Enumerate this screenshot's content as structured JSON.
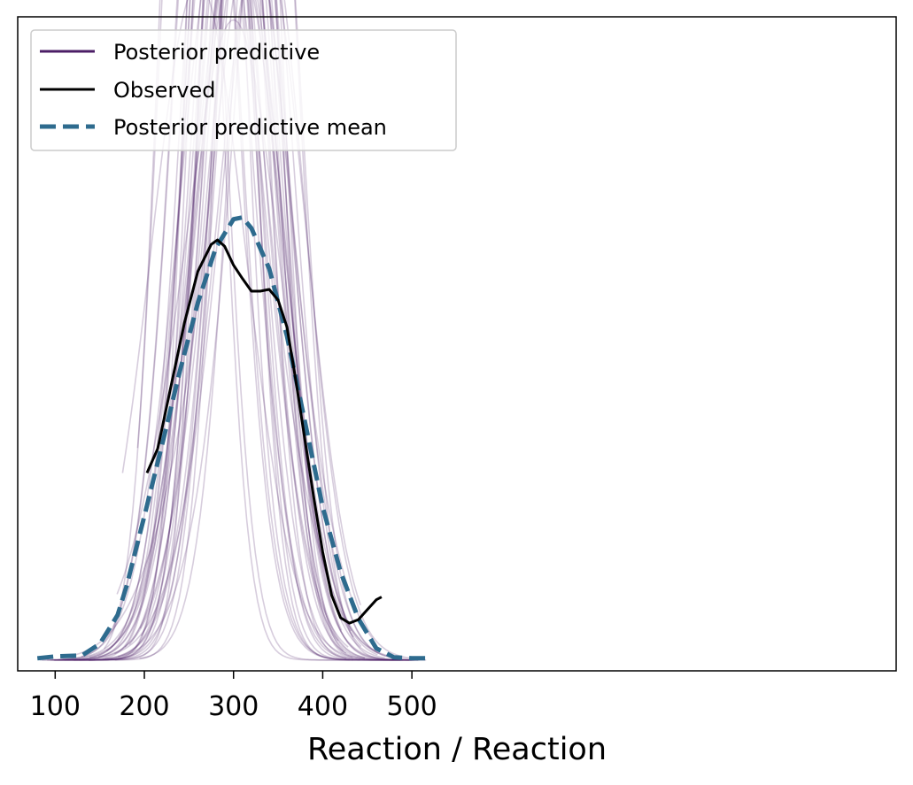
{
  "chart_data": {
    "type": "line",
    "title": "",
    "xlabel": "Reaction / Reaction",
    "ylabel": "",
    "xlim": [
      58,
      1043
    ],
    "ylim": [
      -0.00012,
      0.00715
    ],
    "xticks": [
      100,
      200,
      300,
      400,
      500
    ],
    "show_yticks": false,
    "grid": false,
    "legend": {
      "location": "top-left",
      "entries": [
        {
          "label": "Posterior predictive",
          "style": "solid",
          "color": "#4b1d66"
        },
        {
          "label": "Observed",
          "style": "solid",
          "color": "#000000"
        },
        {
          "label": "Posterior predictive mean",
          "style": "dashed",
          "color": "#2e6b8e"
        }
      ]
    },
    "colors": {
      "posterior_predictive": "#4b1d66",
      "observed": "#000000",
      "mean": "#2e6b8e"
    },
    "series": [
      {
        "name": "Observed",
        "role": "observed",
        "x": [
          203,
          215,
          230,
          245,
          260,
          275,
          282,
          290,
          300,
          310,
          320,
          330,
          340,
          350,
          360,
          370,
          380,
          390,
          400,
          410,
          420,
          430,
          440,
          450,
          460,
          466
        ],
        "y": [
          0.00208,
          0.00235,
          0.00305,
          0.00375,
          0.00432,
          0.00462,
          0.00467,
          0.0046,
          0.00439,
          0.00424,
          0.0041,
          0.0041,
          0.00412,
          0.004,
          0.0037,
          0.0031,
          0.00245,
          0.0018,
          0.0012,
          0.00072,
          0.00047,
          0.00041,
          0.00045,
          0.00056,
          0.00067,
          0.0007
        ]
      },
      {
        "name": "Posterior predictive mean",
        "role": "mean",
        "x": [
          80,
          100,
          130,
          150,
          170,
          180,
          200,
          220,
          240,
          260,
          280,
          300,
          310,
          320,
          340,
          360,
          380,
          400,
          420,
          440,
          460,
          480,
          500,
          520
        ],
        "y": [
          2e-05,
          4e-05,
          5e-05,
          0.00018,
          0.0005,
          0.00082,
          0.0016,
          0.0024,
          0.00322,
          0.00397,
          0.00458,
          0.0049,
          0.00492,
          0.0048,
          0.00435,
          0.0036,
          0.00265,
          0.0017,
          0.00098,
          0.00046,
          0.00013,
          3e-05,
          2e-05,
          2e-05
        ]
      }
    ],
    "posterior_predictive_draws": 40
  }
}
